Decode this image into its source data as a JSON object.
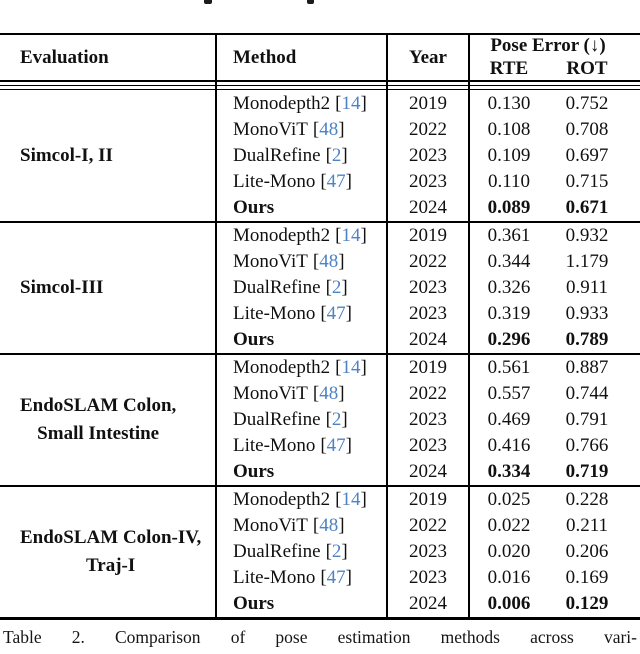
{
  "table": {
    "headers": {
      "evaluation": "Evaluation",
      "method": "Method",
      "year": "Year",
      "pose_error": "Pose Error (↓)",
      "rte": "RTE",
      "rot": "ROT"
    },
    "groups": [
      {
        "evaluation_lines": [
          "Simcol-I, II"
        ],
        "rows": [
          {
            "method": "Monodepth2",
            "cite": "14",
            "year": "2019",
            "rte": "0.130",
            "rot": "0.752",
            "bold": false
          },
          {
            "method": "MonoViT",
            "cite": "48",
            "year": "2022",
            "rte": "0.108",
            "rot": "0.708",
            "bold": false
          },
          {
            "method": "DualRefine",
            "cite": "2",
            "year": "2023",
            "rte": "0.109",
            "rot": "0.697",
            "bold": false
          },
          {
            "method": "Lite-Mono",
            "cite": "47",
            "year": "2023",
            "rte": "0.110",
            "rot": "0.715",
            "bold": false
          },
          {
            "method": "Ours",
            "cite": null,
            "year": "2024",
            "rte": "0.089",
            "rot": "0.671",
            "bold": true
          }
        ]
      },
      {
        "evaluation_lines": [
          "Simcol-III"
        ],
        "rows": [
          {
            "method": "Monodepth2",
            "cite": "14",
            "year": "2019",
            "rte": "0.361",
            "rot": "0.932",
            "bold": false
          },
          {
            "method": "MonoViT",
            "cite": "48",
            "year": "2022",
            "rte": "0.344",
            "rot": "1.179",
            "bold": false
          },
          {
            "method": "DualRefine",
            "cite": "2",
            "year": "2023",
            "rte": "0.326",
            "rot": "0.911",
            "bold": false
          },
          {
            "method": "Lite-Mono",
            "cite": "47",
            "year": "2023",
            "rte": "0.319",
            "rot": "0.933",
            "bold": false
          },
          {
            "method": "Ours",
            "cite": null,
            "year": "2024",
            "rte": "0.296",
            "rot": "0.789",
            "bold": true
          }
        ]
      },
      {
        "evaluation_lines": [
          "EndoSLAM Colon,",
          "Small Intestine"
        ],
        "rows": [
          {
            "method": "Monodepth2",
            "cite": "14",
            "year": "2019",
            "rte": "0.561",
            "rot": "0.887",
            "bold": false
          },
          {
            "method": "MonoViT",
            "cite": "48",
            "year": "2022",
            "rte": "0.557",
            "rot": "0.744",
            "bold": false
          },
          {
            "method": "DualRefine",
            "cite": "2",
            "year": "2023",
            "rte": "0.469",
            "rot": "0.791",
            "bold": false
          },
          {
            "method": "Lite-Mono",
            "cite": "47",
            "year": "2023",
            "rte": "0.416",
            "rot": "0.766",
            "bold": false
          },
          {
            "method": "Ours",
            "cite": null,
            "year": "2024",
            "rte": "0.334",
            "rot": "0.719",
            "bold": true
          }
        ]
      },
      {
        "evaluation_lines": [
          "EndoSLAM Colon-IV,",
          "Traj-I"
        ],
        "rows": [
          {
            "method": "Monodepth2",
            "cite": "14",
            "year": "2019",
            "rte": "0.025",
            "rot": "0.228",
            "bold": false
          },
          {
            "method": "MonoViT",
            "cite": "48",
            "year": "2022",
            "rte": "0.022",
            "rot": "0.211",
            "bold": false
          },
          {
            "method": "DualRefine",
            "cite": "2",
            "year": "2023",
            "rte": "0.020",
            "rot": "0.206",
            "bold": false
          },
          {
            "method": "Lite-Mono",
            "cite": "47",
            "year": "2023",
            "rte": "0.016",
            "rot": "0.169",
            "bold": false
          },
          {
            "method": "Ours",
            "cite": null,
            "year": "2024",
            "rte": "0.006",
            "rot": "0.129",
            "bold": true
          }
        ]
      }
    ]
  },
  "symbols": {
    "lbracket": "[",
    "rbracket": "]"
  },
  "colors": {
    "citation": "#4d82c4",
    "text": "#111111"
  },
  "caption": "Table 2. Comparison of pose estimation methods across vari-"
}
